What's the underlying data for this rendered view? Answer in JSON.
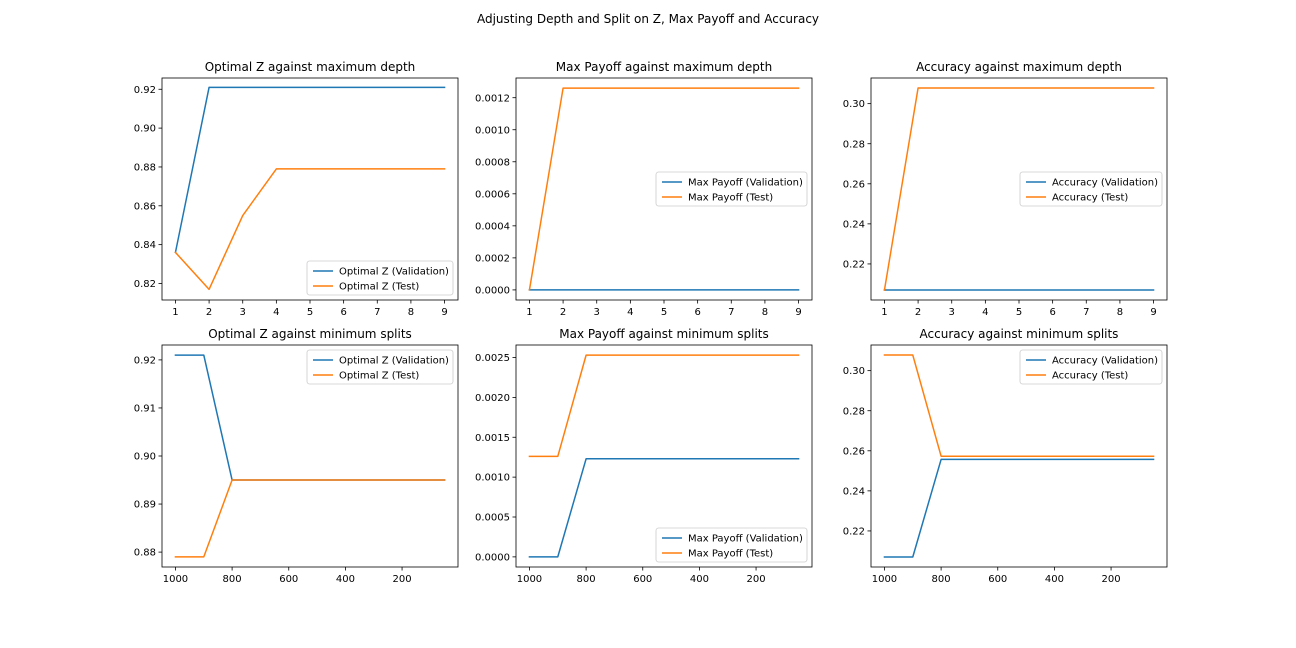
{
  "figure": {
    "suptitle": "Adjusting Depth and Split on Z, Max Payoff and Accuracy"
  },
  "chart_data": [
    {
      "type": "line",
      "title": "Optimal Z against maximum depth",
      "x": [
        1,
        2,
        3,
        4,
        5,
        6,
        7,
        8,
        9
      ],
      "xlim": [
        0.6,
        9.4
      ],
      "ylim": [
        0.8115,
        0.9258
      ],
      "xticks": [
        1,
        2,
        3,
        4,
        5,
        6,
        7,
        8,
        9
      ],
      "xtick_labels": [
        "1",
        "2",
        "3",
        "4",
        "5",
        "6",
        "7",
        "8",
        "9"
      ],
      "yticks": [
        0.82,
        0.84,
        0.86,
        0.88,
        0.9,
        0.92
      ],
      "ytick_labels": [
        "0.82",
        "0.84",
        "0.86",
        "0.88",
        "0.90",
        "0.92"
      ],
      "legend_loc": "lower-right",
      "series": [
        {
          "name": "Optimal Z (Validation)",
          "color": "#1f77b4",
          "values": [
            0.836,
            0.921,
            0.921,
            0.921,
            0.921,
            0.921,
            0.921,
            0.921,
            0.921
          ]
        },
        {
          "name": "Optimal Z (Test)",
          "color": "#ff7f0e",
          "values": [
            0.836,
            0.817,
            0.855,
            0.879,
            0.879,
            0.879,
            0.879,
            0.879,
            0.879
          ]
        }
      ]
    },
    {
      "type": "line",
      "title": "Max Payoff against maximum depth",
      "x": [
        1,
        2,
        3,
        4,
        5,
        6,
        7,
        8,
        9
      ],
      "xlim": [
        0.6,
        9.4
      ],
      "ylim": [
        -6.3e-05,
        0.001323
      ],
      "xticks": [
        1,
        2,
        3,
        4,
        5,
        6,
        7,
        8,
        9
      ],
      "xtick_labels": [
        "1",
        "2",
        "3",
        "4",
        "5",
        "6",
        "7",
        "8",
        "9"
      ],
      "yticks": [
        0.0,
        0.0002,
        0.0004,
        0.0006,
        0.0008,
        0.001,
        0.0012
      ],
      "ytick_labels": [
        "0.0000",
        "0.0002",
        "0.0004",
        "0.0006",
        "0.0008",
        "0.0010",
        "0.0012"
      ],
      "legend_loc": "center-right",
      "series": [
        {
          "name": "Max Payoff (Validation)",
          "color": "#1f77b4",
          "values": [
            0,
            0,
            0,
            0,
            0,
            0,
            0,
            0,
            0
          ]
        },
        {
          "name": "Max Payoff (Test)",
          "color": "#ff7f0e",
          "values": [
            0,
            0.00126,
            0.00126,
            0.00126,
            0.00126,
            0.00126,
            0.00126,
            0.00126,
            0.00126
          ]
        }
      ]
    },
    {
      "type": "line",
      "title": "Accuracy against maximum depth",
      "x": [
        1,
        2,
        3,
        4,
        5,
        6,
        7,
        8,
        9
      ],
      "xlim": [
        0.6,
        9.4
      ],
      "ylim": [
        0.202,
        0.3128
      ],
      "xticks": [
        1,
        2,
        3,
        4,
        5,
        6,
        7,
        8,
        9
      ],
      "xtick_labels": [
        "1",
        "2",
        "3",
        "4",
        "5",
        "6",
        "7",
        "8",
        "9"
      ],
      "yticks": [
        0.22,
        0.24,
        0.26,
        0.28,
        0.3
      ],
      "ytick_labels": [
        "0.22",
        "0.24",
        "0.26",
        "0.28",
        "0.30"
      ],
      "legend_loc": "center-right",
      "series": [
        {
          "name": "Accuracy (Validation)",
          "color": "#1f77b4",
          "values": [
            0.207,
            0.207,
            0.207,
            0.207,
            0.207,
            0.207,
            0.207,
            0.207,
            0.207
          ]
        },
        {
          "name": "Accuracy (Test)",
          "color": "#ff7f0e",
          "values": [
            0.207,
            0.3078,
            0.3078,
            0.3078,
            0.3078,
            0.3078,
            0.3078,
            0.3078,
            0.3078
          ]
        }
      ]
    },
    {
      "type": "line",
      "title": "Optimal Z against minimum splits",
      "x": [
        1000,
        900,
        800,
        700,
        600,
        500,
        400,
        300,
        200,
        100,
        50
      ],
      "xlim": [
        1047.5,
        2.5
      ],
      "ylim": [
        0.8769,
        0.9231
      ],
      "xticks": [
        1000,
        800,
        600,
        400,
        200
      ],
      "xtick_labels": [
        "1000",
        "800",
        "600",
        "400",
        "200"
      ],
      "yticks": [
        0.88,
        0.89,
        0.9,
        0.91,
        0.92
      ],
      "ytick_labels": [
        "0.88",
        "0.89",
        "0.90",
        "0.91",
        "0.92"
      ],
      "legend_loc": "upper-right",
      "series": [
        {
          "name": "Optimal Z (Validation)",
          "color": "#1f77b4",
          "values": [
            0.921,
            0.921,
            0.895,
            0.895,
            0.895,
            0.895,
            0.895,
            0.895,
            0.895,
            0.895,
            0.895
          ]
        },
        {
          "name": "Optimal Z (Test)",
          "color": "#ff7f0e",
          "values": [
            0.879,
            0.879,
            0.895,
            0.895,
            0.895,
            0.895,
            0.895,
            0.895,
            0.895,
            0.895,
            0.895
          ]
        }
      ]
    },
    {
      "type": "line",
      "title": "Max Payoff against minimum splits",
      "x": [
        1000,
        900,
        800,
        700,
        600,
        500,
        400,
        300,
        200,
        100,
        50
      ],
      "xlim": [
        1047.5,
        2.5
      ],
      "ylim": [
        -0.000127,
        0.002657
      ],
      "xticks": [
        1000,
        800,
        600,
        400,
        200
      ],
      "xtick_labels": [
        "1000",
        "800",
        "600",
        "400",
        "200"
      ],
      "yticks": [
        0.0,
        0.0005,
        0.001,
        0.0015,
        0.002,
        0.0025
      ],
      "ytick_labels": [
        "0.0000",
        "0.0005",
        "0.0010",
        "0.0015",
        "0.0020",
        "0.0025"
      ],
      "legend_loc": "lower-right",
      "series": [
        {
          "name": "Max Payoff (Validation)",
          "color": "#1f77b4",
          "values": [
            0,
            0,
            0.00123,
            0.00123,
            0.00123,
            0.00123,
            0.00123,
            0.00123,
            0.00123,
            0.00123,
            0.00123
          ]
        },
        {
          "name": "Max Payoff (Test)",
          "color": "#ff7f0e",
          "values": [
            0.00126,
            0.00126,
            0.00253,
            0.00253,
            0.00253,
            0.00253,
            0.00253,
            0.00253,
            0.00253,
            0.00253,
            0.00253
          ]
        }
      ]
    },
    {
      "type": "line",
      "title": "Accuracy against minimum splits",
      "x": [
        1000,
        900,
        800,
        700,
        600,
        500,
        400,
        300,
        200,
        100,
        50
      ],
      "xlim": [
        1047.5,
        2.5
      ],
      "ylim": [
        0.202,
        0.3128
      ],
      "xticks": [
        1000,
        800,
        600,
        400,
        200
      ],
      "xtick_labels": [
        "1000",
        "800",
        "600",
        "400",
        "200"
      ],
      "yticks": [
        0.22,
        0.24,
        0.26,
        0.28,
        0.3
      ],
      "ytick_labels": [
        "0.22",
        "0.24",
        "0.26",
        "0.28",
        "0.30"
      ],
      "legend_loc": "upper-right",
      "series": [
        {
          "name": "Accuracy (Validation)",
          "color": "#1f77b4",
          "values": [
            0.207,
            0.207,
            0.2557,
            0.2557,
            0.2557,
            0.2557,
            0.2557,
            0.2557,
            0.2557,
            0.2557,
            0.2557
          ]
        },
        {
          "name": "Accuracy (Test)",
          "color": "#ff7f0e",
          "values": [
            0.3078,
            0.3078,
            0.2573,
            0.2573,
            0.2573,
            0.2573,
            0.2573,
            0.2573,
            0.2573,
            0.2573,
            0.2573
          ]
        }
      ]
    }
  ]
}
